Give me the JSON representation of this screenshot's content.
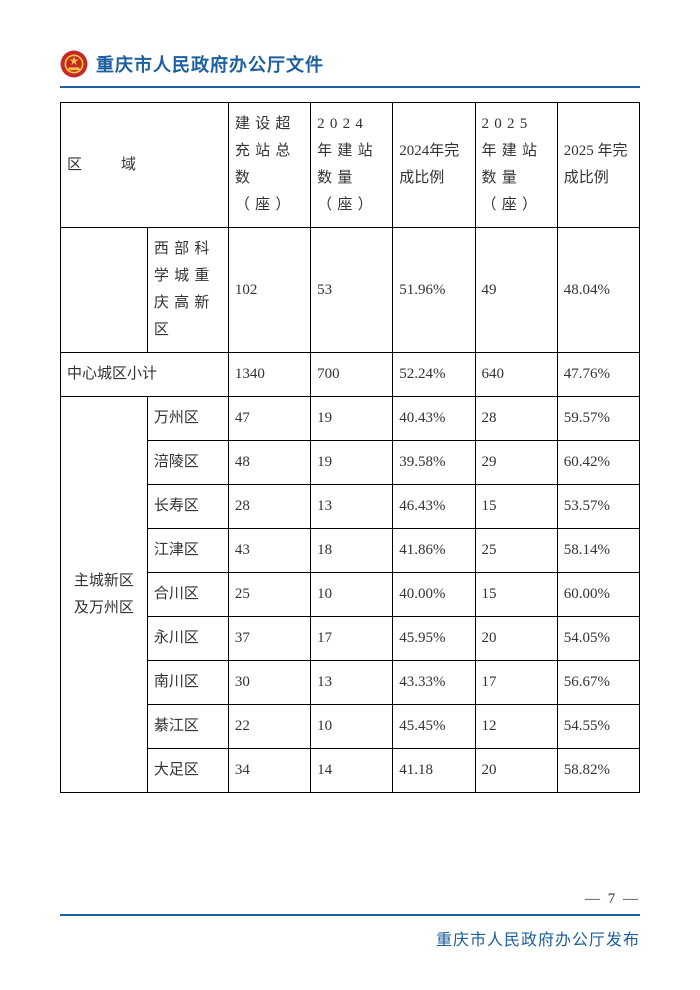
{
  "colors": {
    "accent": "#1b5f9e",
    "emblem_red": "#c62828",
    "emblem_gold": "#f5c242",
    "text": "#333333"
  },
  "header": {
    "title": "重庆市人民政府办公厅文件"
  },
  "table": {
    "headers": {
      "region": "区　域",
      "total": "建设超充站总数（座）",
      "y24_build": "2024 年建站数量（座）",
      "y24_pct": "2024年完成比例",
      "y25_build": "2025 年建站数量（座）",
      "y25_pct": "2025 年完成比例"
    },
    "row_xibu": {
      "sub": "西部科学城重庆高新区",
      "total": "102",
      "y24b": "53",
      "y24p": "51.96%",
      "y25b": "49",
      "y25p": "48.04%"
    },
    "row_center_subtotal": {
      "label": "中心城区小计",
      "total": "1340",
      "y24b": "700",
      "y24p": "52.24%",
      "y25b": "640",
      "y25p": "47.76%"
    },
    "group_main_label": "主城新区及万州区",
    "group_main": [
      {
        "sub": "万州区",
        "total": "47",
        "y24b": "19",
        "y24p": "40.43%",
        "y25b": "28",
        "y25p": "59.57%"
      },
      {
        "sub": "涪陵区",
        "total": "48",
        "y24b": "19",
        "y24p": "39.58%",
        "y25b": "29",
        "y25p": "60.42%"
      },
      {
        "sub": "长寿区",
        "total": "28",
        "y24b": "13",
        "y24p": "46.43%",
        "y25b": "15",
        "y25p": "53.57%"
      },
      {
        "sub": "江津区",
        "total": "43",
        "y24b": "18",
        "y24p": "41.86%",
        "y25b": "25",
        "y25p": "58.14%"
      },
      {
        "sub": "合川区",
        "total": "25",
        "y24b": "10",
        "y24p": "40.00%",
        "y25b": "15",
        "y25p": "60.00%"
      },
      {
        "sub": "永川区",
        "total": "37",
        "y24b": "17",
        "y24p": "45.95%",
        "y25b": "20",
        "y25p": "54.05%"
      },
      {
        "sub": "南川区",
        "total": "30",
        "y24b": "13",
        "y24p": "43.33%",
        "y25b": "17",
        "y25p": "56.67%"
      },
      {
        "sub": "綦江区",
        "total": "22",
        "y24b": "10",
        "y24p": "45.45%",
        "y25b": "12",
        "y25p": "54.55%"
      },
      {
        "sub": "大足区",
        "total": "34",
        "y24b": "14",
        "y24p": "41.18",
        "y25b": "20",
        "y25p": "58.82%"
      }
    ]
  },
  "footer": {
    "page_num": "— 7 —",
    "publisher": "重庆市人民政府办公厅发布"
  }
}
